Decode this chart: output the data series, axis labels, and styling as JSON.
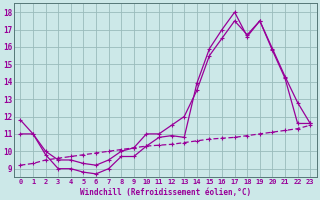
{
  "bg_color": "#cce8e8",
  "line_color": "#990099",
  "grid_color": "#99bbbb",
  "xlabel": "Windchill (Refroidissement éolien,°C)",
  "xlim": [
    -0.5,
    23.5
  ],
  "ylim": [
    8.5,
    18.5
  ],
  "yticks": [
    9,
    10,
    11,
    12,
    13,
    14,
    15,
    16,
    17,
    18
  ],
  "xticks": [
    0,
    1,
    2,
    3,
    4,
    5,
    6,
    7,
    8,
    9,
    10,
    11,
    12,
    13,
    14,
    15,
    16,
    17,
    18,
    19,
    20,
    21,
    22,
    23
  ],
  "line1_x": [
    0,
    1,
    2,
    3,
    4,
    5,
    6,
    7,
    8,
    9,
    10,
    11,
    12,
    13,
    14,
    15,
    16,
    17,
    18,
    19,
    20,
    21,
    22,
    23
  ],
  "line1_y": [
    11.8,
    11.0,
    9.8,
    9.0,
    9.0,
    8.8,
    8.7,
    9.0,
    9.7,
    9.7,
    10.3,
    10.8,
    10.9,
    10.8,
    13.9,
    15.9,
    17.0,
    18.0,
    16.6,
    17.5,
    15.9,
    14.3,
    12.8,
    11.6
  ],
  "line2_x": [
    0,
    1,
    2,
    3,
    4,
    5,
    6,
    7,
    8,
    9,
    10,
    11,
    12,
    13,
    14,
    15,
    16,
    17,
    18,
    19,
    20,
    21,
    22,
    23
  ],
  "line2_y": [
    11.0,
    11.0,
    10.0,
    9.5,
    9.5,
    9.3,
    9.2,
    9.5,
    10.0,
    10.2,
    11.0,
    11.0,
    11.5,
    12.0,
    13.5,
    15.5,
    16.5,
    17.5,
    16.7,
    17.5,
    15.8,
    14.2,
    11.6,
    11.6
  ],
  "line3_x": [
    0,
    1,
    2,
    3,
    4,
    5,
    6,
    7,
    8,
    9,
    10,
    11,
    12,
    13,
    14,
    15,
    16,
    17,
    18,
    19,
    20,
    21,
    22,
    23
  ],
  "line3_y": [
    9.2,
    9.3,
    9.5,
    9.6,
    9.7,
    9.8,
    9.9,
    10.0,
    10.1,
    10.2,
    10.3,
    10.35,
    10.4,
    10.5,
    10.6,
    10.7,
    10.75,
    10.8,
    10.9,
    11.0,
    11.1,
    11.2,
    11.3,
    11.5
  ]
}
